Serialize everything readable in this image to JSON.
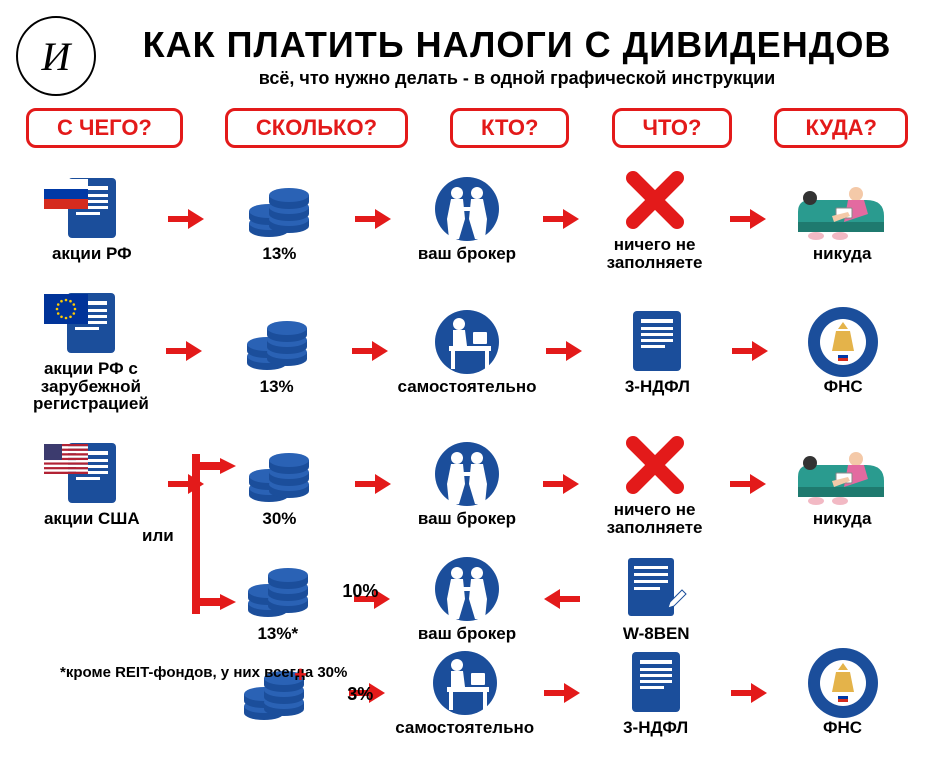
{
  "colors": {
    "red": "#e31a1a",
    "blue": "#1b4e9b",
    "dark": "#000000",
    "sofa": "#2a9b8f",
    "skin": "#f4c9a8",
    "seal_bg": "#1b4e9b",
    "seal_inner": "#e4b34a"
  },
  "header": {
    "logo_letter": "И",
    "title": "КАК ПЛАТИТЬ НАЛОГИ С ДИВИДЕНДОВ",
    "subtitle": "всё, что нужно делать - в одной графической инструкции"
  },
  "column_headers": [
    "С ЧЕГО?",
    "СКОЛЬКО?",
    "КТО?",
    "ЧТО?",
    "КУДА?"
  ],
  "rows": [
    {
      "source": {
        "label": "акции РФ",
        "flag": "ru"
      },
      "amount": {
        "label": "13%"
      },
      "who": {
        "label": "ваш брокер",
        "icon": "broker"
      },
      "what": {
        "label": "ничего не\nзаполняете",
        "icon": "cross"
      },
      "where": {
        "label": "никуда",
        "icon": "sofa"
      }
    },
    {
      "source": {
        "label": "акции РФ с зарубежной\nрегистрацией",
        "flag": "eu"
      },
      "amount": {
        "label": "13%"
      },
      "who": {
        "label": "самостоятельно",
        "icon": "desk"
      },
      "what": {
        "label": "3-НДФЛ",
        "icon": "doc"
      },
      "where": {
        "label": "ФНС",
        "icon": "fns"
      }
    },
    {
      "source": {
        "label": "акции США",
        "flag": "us"
      },
      "amount": {
        "label": "30%"
      },
      "who": {
        "label": "ваш брокер",
        "icon": "broker"
      },
      "what": {
        "label": "ничего не\nзаполняете",
        "icon": "cross"
      },
      "where": {
        "label": "никуда",
        "icon": "sofa"
      }
    },
    {
      "source": null,
      "amount": {
        "label": "13%*",
        "side_label": "10%"
      },
      "who": {
        "label": "ваш брокер",
        "icon": "broker"
      },
      "what": {
        "label": "W-8BEN",
        "icon": "docplain",
        "reverse_arrow": true
      },
      "where": null
    },
    {
      "source": null,
      "amount": {
        "label": "",
        "side_label": "3%"
      },
      "who": {
        "label": "самостоятельно",
        "icon": "desk"
      },
      "what": {
        "label": "3-НДФЛ",
        "icon": "doc"
      },
      "where": {
        "label": "ФНС",
        "icon": "fns"
      }
    }
  ],
  "branch_label": "или",
  "plus_label": "+",
  "footnote": "*кроме REIT-фондов, у них всегда 30%"
}
